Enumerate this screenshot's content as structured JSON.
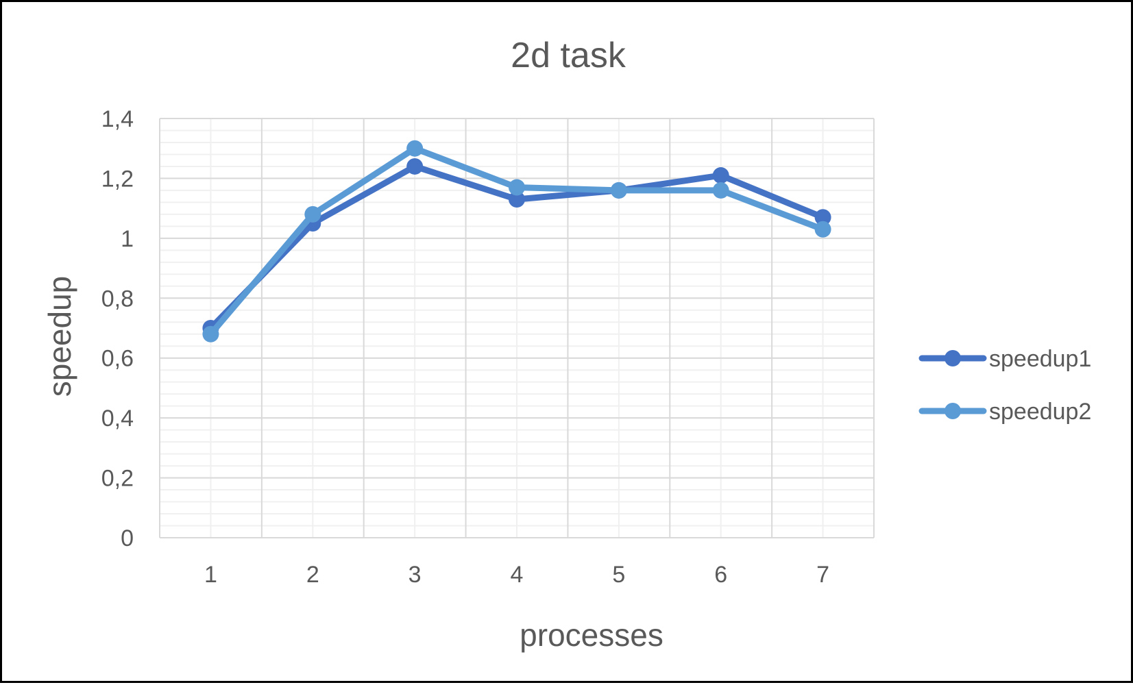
{
  "chart_data": {
    "type": "line",
    "title": "2d task",
    "xlabel": "processes",
    "ylabel": "speedup",
    "categories": [
      "1",
      "2",
      "3",
      "4",
      "5",
      "6",
      "7"
    ],
    "y_tick_labels": [
      "0",
      "0,2",
      "0,4",
      "0,6",
      "0,8",
      "1",
      "1,2",
      "1,4"
    ],
    "ylim": [
      0,
      1.4
    ],
    "y_major_step": 0.2,
    "y_minor_step": 0.04,
    "grid": true,
    "legend_position": "right",
    "series": [
      {
        "name": "speedup1",
        "color": "#4472C4",
        "values": [
          0.7,
          1.05,
          1.24,
          1.13,
          1.16,
          1.21,
          1.07
        ]
      },
      {
        "name": "speedup2",
        "color": "#5B9BD5",
        "values": [
          0.68,
          1.08,
          1.3,
          1.17,
          1.16,
          1.16,
          1.03
        ]
      }
    ]
  }
}
